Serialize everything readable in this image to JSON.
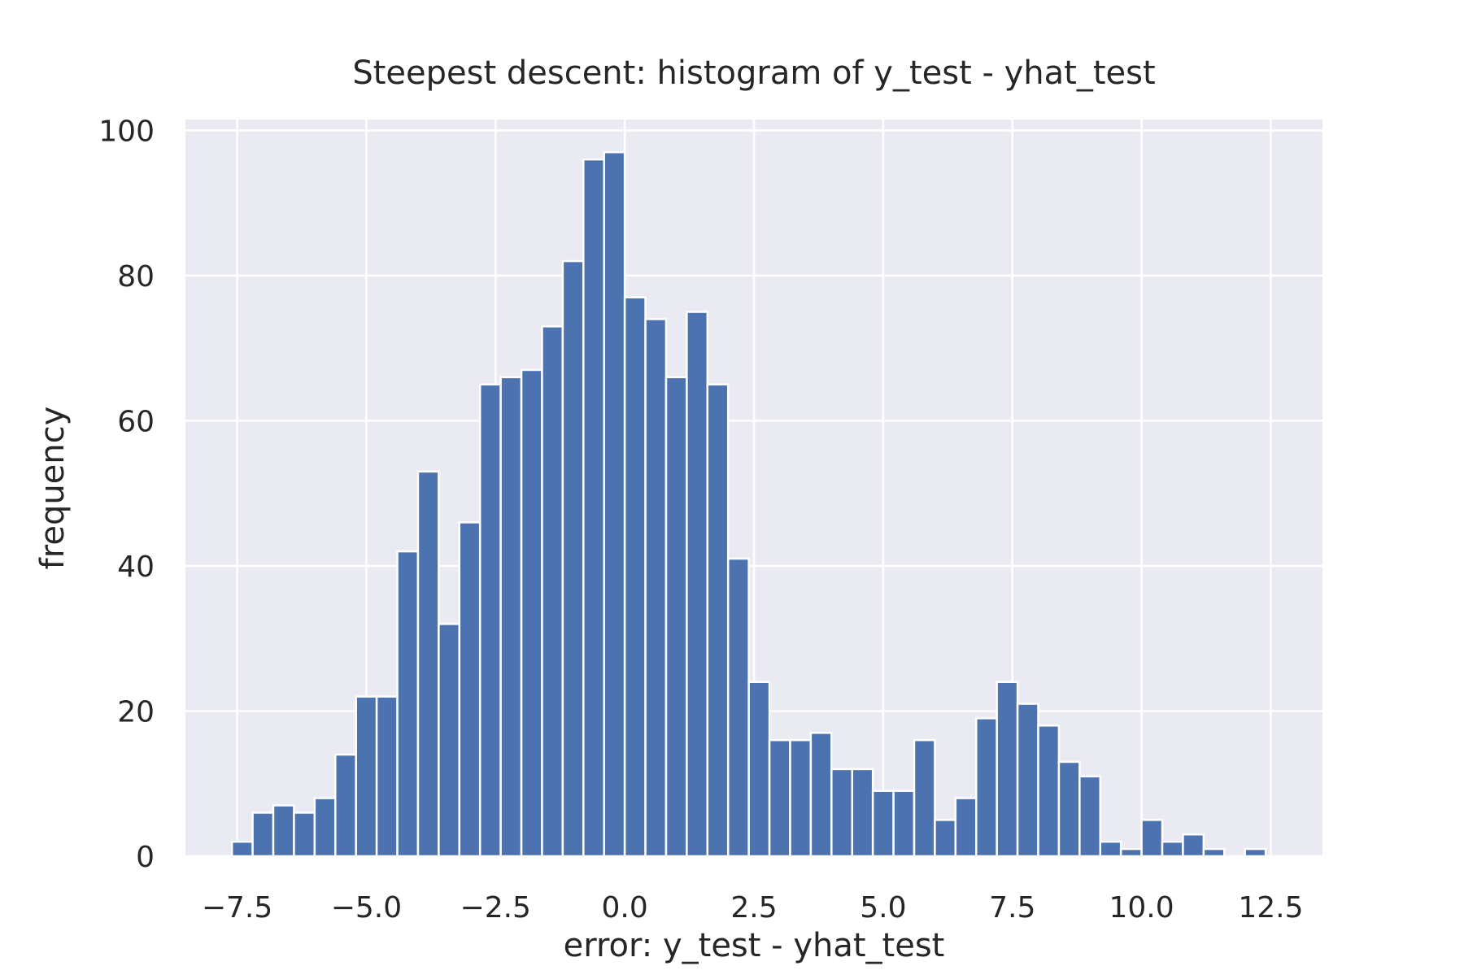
{
  "chart_data": {
    "type": "bar",
    "title": "Steepest descent: histogram of y_test - yhat_test",
    "xlabel": "error: y_test - yhat_test",
    "ylabel": "frequency",
    "xlim": [
      -8.5,
      13.5
    ],
    "ylim": [
      0,
      101.5
    ],
    "x_ticks": [
      -7.5,
      -5.0,
      -2.5,
      0.0,
      2.5,
      5.0,
      7.5,
      10.0,
      12.5
    ],
    "x_tick_labels": [
      "−7.5",
      "−5.0",
      "−2.5",
      "0.0",
      "2.5",
      "5.0",
      "7.5",
      "10.0",
      "12.5"
    ],
    "y_ticks": [
      0,
      20,
      40,
      60,
      80,
      100
    ],
    "y_tick_labels": [
      "0",
      "20",
      "40",
      "60",
      "80",
      "100"
    ],
    "grid": true,
    "bin_edges": [
      -7.6,
      -7.2,
      -6.8,
      -6.4,
      -6.0,
      -5.6,
      -5.2,
      -4.8,
      -4.4,
      -4.0,
      -3.6,
      -3.2,
      -2.8,
      -2.4,
      -2.0,
      -1.6,
      -1.2,
      -0.8,
      -0.4,
      0.0,
      0.4,
      0.8,
      1.2,
      1.6,
      2.0,
      2.4,
      2.8,
      3.2,
      3.6,
      4.0,
      4.4,
      4.8,
      5.2,
      5.6,
      6.0,
      6.4,
      6.8,
      7.2,
      7.6,
      8.0,
      8.4,
      8.8,
      9.2,
      9.6,
      10.0,
      10.4,
      10.8,
      11.2,
      11.6,
      12.0,
      12.4
    ],
    "counts": [
      2,
      6,
      7,
      6,
      8,
      14,
      22,
      22,
      42,
      53,
      32,
      46,
      65,
      66,
      67,
      73,
      82,
      96,
      97,
      77,
      74,
      66,
      75,
      65,
      41,
      24,
      16,
      16,
      17,
      12,
      12,
      9,
      9,
      16,
      5,
      8,
      19,
      24,
      21,
      18,
      13,
      11,
      2,
      1,
      5,
      2,
      3,
      1,
      0,
      1
    ],
    "bar_color": "#4c72b0",
    "plot_background": "#eaeaf2",
    "grid_color": "#ffffff"
  }
}
